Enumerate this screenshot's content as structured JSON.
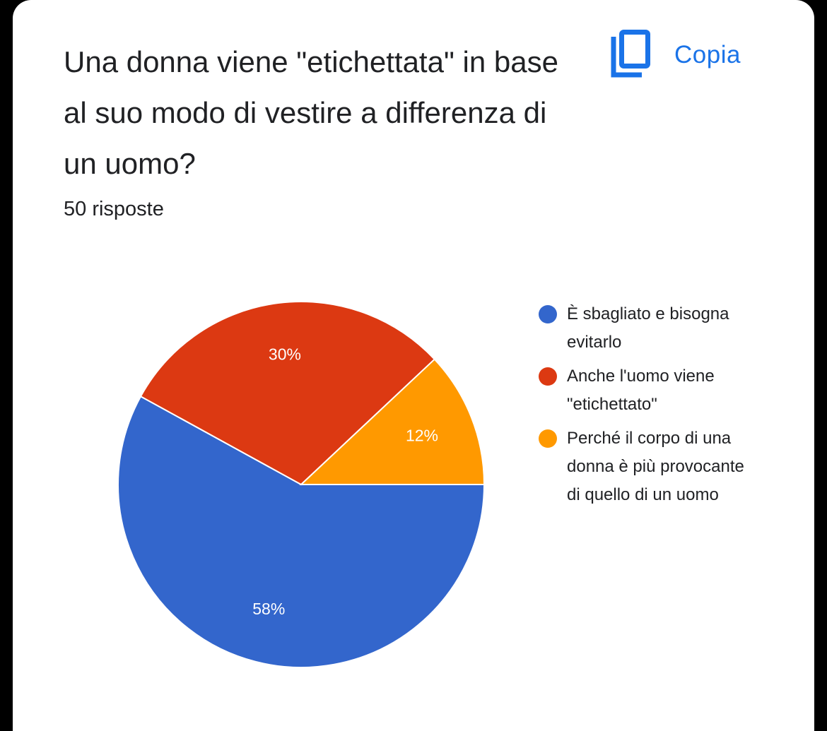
{
  "header": {
    "title": "Una donna viene \"etichettata\" in base al suo modo di vestire a differenza di un uomo?",
    "copy_label": "Copia",
    "copy_icon": "copy-icon",
    "response_count": "50 risposte"
  },
  "colors": {
    "accent": "#1a73e8",
    "blue": "#3366cc",
    "red": "#dc3912",
    "orange": "#ff9900"
  },
  "chart_data": {
    "type": "pie",
    "title": "",
    "slices": [
      {
        "name": "È sbagliato e bisogna evitarlo",
        "value": 58,
        "label": "58%",
        "color": "#3366cc"
      },
      {
        "name": "Anche l'uomo viene \"etichettato\"",
        "value": 30,
        "label": "30%",
        "color": "#dc3912"
      },
      {
        "name": "Perché il corpo di una donna è più provocante di quello di un uomo",
        "value": 12,
        "label": "12%",
        "color": "#ff9900"
      }
    ],
    "legend_position": "right"
  }
}
